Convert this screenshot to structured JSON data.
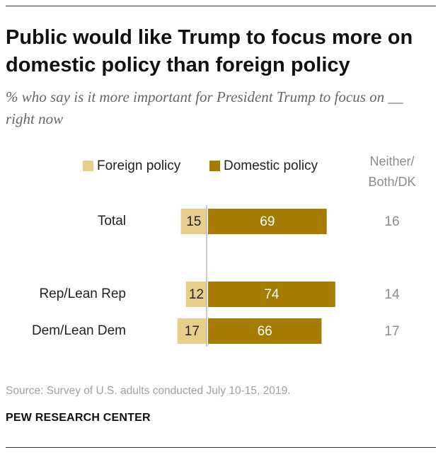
{
  "title": "Public would like Trump to focus more on domestic policy than foreign policy",
  "subtitle": "% who say is it more important for President Trump to focus on __ right now",
  "source": "Source: Survey of U.S. adults conducted July 10-15, 2019.",
  "brand": "PEW RESEARCH CENTER",
  "colors": {
    "foreign": "#e9cd8a",
    "domestic": "#a57c00",
    "neither": "#8c8c8c",
    "axis": "#bbbbbb"
  },
  "chart_data": {
    "type": "bar",
    "orientation": "horizontal-diverging",
    "categories": [
      "Total",
      "Rep/Lean Rep",
      "Dem/Lean Dem"
    ],
    "series": [
      {
        "name": "Foreign policy",
        "values": [
          15,
          12,
          17
        ]
      },
      {
        "name": "Domestic policy",
        "values": [
          69,
          74,
          66
        ]
      }
    ],
    "side_column": {
      "header": [
        "Neither/",
        "Both/DK"
      ],
      "values": [
        16,
        14,
        17
      ]
    },
    "legend": "top",
    "grid": false
  }
}
